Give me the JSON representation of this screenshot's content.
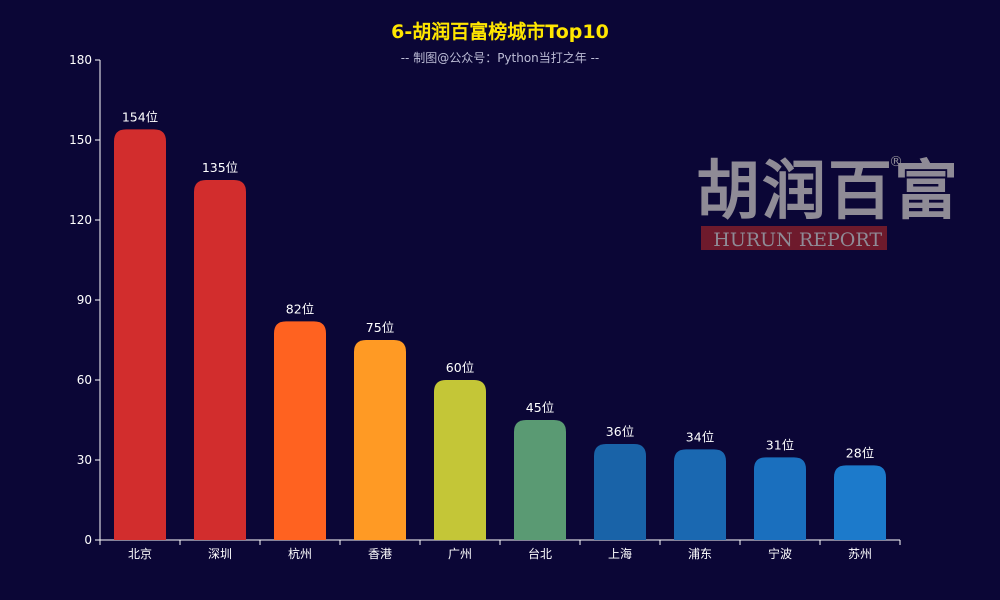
{
  "title": "6-胡润百富榜城市Top10",
  "subtitle": "-- 制图@公众号：Python当打之年 --",
  "colors": {
    "background": "#0b0636",
    "title": "#ffe600",
    "subtitle": "#bdbdd6",
    "axis": "#ffffff",
    "label": "#ffffff"
  },
  "logo": {
    "cn": "胡润百富",
    "en": "HURUN REPORT",
    "mark": "®"
  },
  "chart_data": {
    "type": "bar",
    "categories": [
      "北京",
      "深圳",
      "杭州",
      "香港",
      "广州",
      "台北",
      "上海",
      "浦东",
      "宁波",
      "苏州"
    ],
    "values": [
      154,
      135,
      82,
      75,
      60,
      45,
      36,
      34,
      31,
      28
    ],
    "value_suffix": "位",
    "bar_colors": [
      "#d22d2d",
      "#d22d2d",
      "#ff6220",
      "#ff9a24",
      "#c4c637",
      "#5a9a73",
      "#1963a8",
      "#1a68b1",
      "#1a6fbe",
      "#1c7acb"
    ],
    "ylim": [
      0,
      180
    ],
    "yticks": [
      0,
      30,
      60,
      90,
      120,
      150,
      180
    ],
    "grid": false,
    "legend": "none"
  }
}
